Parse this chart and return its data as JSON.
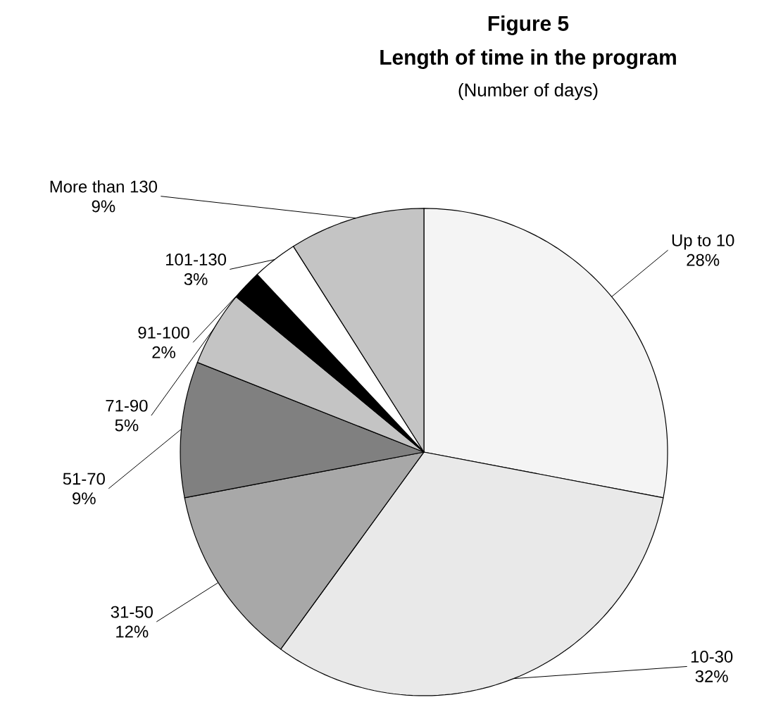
{
  "chart_data": {
    "type": "pie",
    "title": "Figure 5",
    "subtitle": "Length of time in the program",
    "annotations": [
      "(Number of days)"
    ],
    "categories": [
      "Up to 10",
      "10-30",
      "31-50",
      "51-70",
      "71-90",
      "91-100",
      "101-130",
      "More than 130"
    ],
    "values": [
      28,
      32,
      12,
      9,
      5,
      2,
      3,
      9
    ],
    "value_labels": [
      "28%",
      "32%",
      "12%",
      "9%",
      "5%",
      "2%",
      "3%",
      "9%"
    ],
    "colors": [
      "#f4f4f4",
      "#e9e9e9",
      "#a8a8a8",
      "#808080",
      "#c4c4c4",
      "#000000",
      "#ffffff",
      "#c4c4c4"
    ]
  }
}
